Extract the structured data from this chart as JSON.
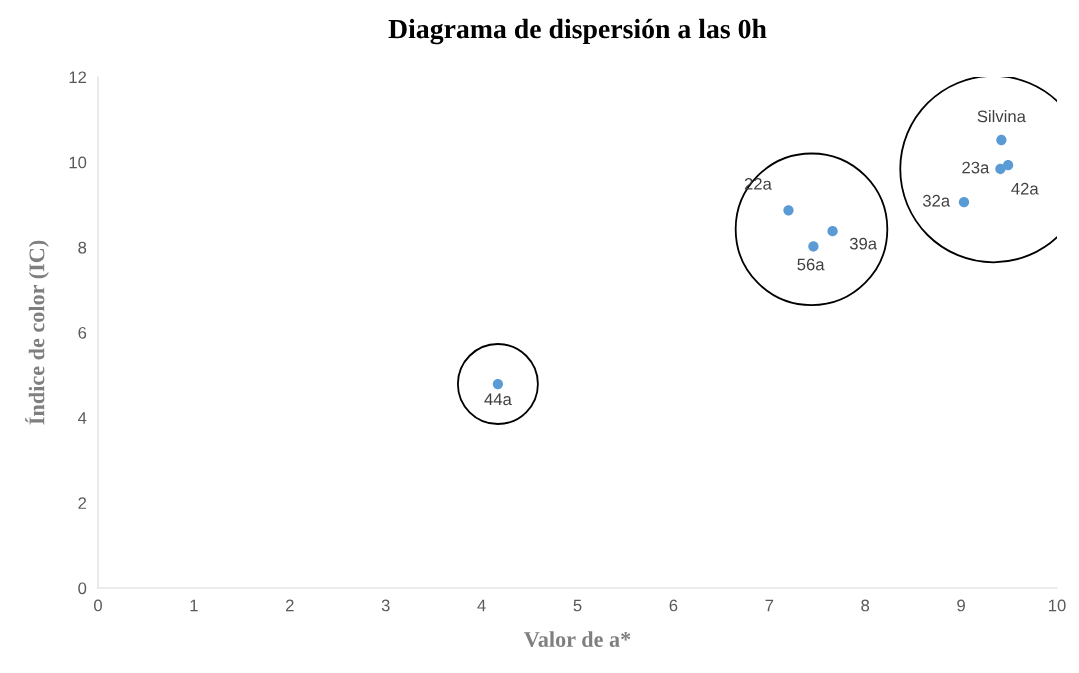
{
  "chart_data": {
    "type": "scatter",
    "title": "Diagrama de dispersión a las 0h",
    "xlabel": "Valor de a*",
    "ylabel": "Índice de color (IC)",
    "x": [
      4.17,
      7.2,
      7.46,
      7.66,
      9.42,
      9.41,
      9.49,
      9.03
    ],
    "series": [
      {
        "color": "#5b9bd5",
        "values": [
          4.79,
          8.87,
          8.02,
          8.38,
          10.52,
          9.84,
          9.93,
          9.06
        ]
      }
    ],
    "annotations": [
      {
        "text": "44a",
        "x": 4.17,
        "y": 4.79
      },
      {
        "text": "22a",
        "x": 7.2,
        "y": 8.87
      },
      {
        "text": "56a",
        "x": 7.46,
        "y": 8.02
      },
      {
        "text": "39a",
        "x": 7.66,
        "y": 8.38
      },
      {
        "text": "Silvina",
        "x": 9.42,
        "y": 10.52
      },
      {
        "text": "23a",
        "x": 9.41,
        "y": 9.84
      },
      {
        "text": "42a",
        "x": 9.49,
        "y": 9.93
      },
      {
        "text": "32a",
        "x": 9.03,
        "y": 9.06
      }
    ],
    "xlim": [
      0,
      10
    ],
    "ylim": [
      0,
      12
    ],
    "xticks": [
      0,
      1,
      2,
      3,
      4,
      5,
      6,
      7,
      8,
      9,
      10
    ],
    "yticks": [
      0,
      2,
      4,
      6,
      8,
      10,
      12
    ],
    "grid": false,
    "legend": false,
    "marker": "circle"
  }
}
